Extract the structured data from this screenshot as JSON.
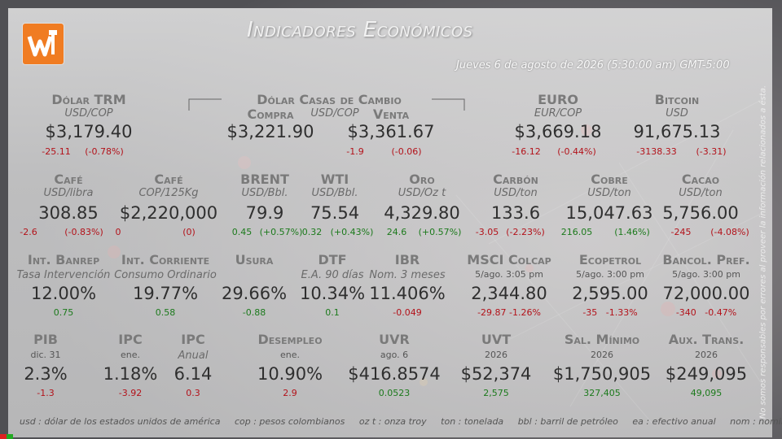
{
  "colors": {
    "positive": "#1c7a1c",
    "negative": "#b3121a",
    "logo": "#f07c22"
  },
  "header": {
    "title": "Indicadores Económicos",
    "date": "Jueves 6 de agosto de 2026 (5:30:00 am) GMT-5:00",
    "logo_icon": "w-logo-icon"
  },
  "row1": {
    "dolar_trm": {
      "label": "Dólar TRM",
      "unit": "USD/COP",
      "value": "$3,179.40",
      "change": "-25.11",
      "pct": "(-0.78%)",
      "trend": "neg"
    },
    "casas": {
      "label": "Dólar Casas de Cambio",
      "compra_label": "Compra",
      "unit": "USD/COP",
      "venta_label": "Venta",
      "compra_value": "$3,221.90",
      "venta_value": "$3,361.67",
      "venta_change": "-1.9",
      "venta_pct": "(-0.06)"
    },
    "euro": {
      "label": "EURO",
      "unit": "EUR/COP",
      "value": "$3,669.18",
      "change": "-16.12",
      "pct": "(-0.44%)",
      "trend": "neg"
    },
    "bitcoin": {
      "label": "Bitcoin",
      "unit": "USD",
      "value": "91,675.13",
      "change": "-3138.33",
      "pct": "(-3.31)",
      "trend": "neg"
    }
  },
  "row2": [
    {
      "label": "Café",
      "unit": "USD/libra",
      "value": "308.85",
      "change": "-2.6",
      "pct": "(-0.83%)",
      "trend": "neg"
    },
    {
      "label": "Café",
      "unit": "COP/125Kg",
      "value": "$2,220,000",
      "change": "0",
      "pct": "(0)",
      "trend": "neg"
    },
    {
      "label": "BRENT",
      "unit": "USD/Bbl.",
      "value": "79.9",
      "change": "0.45",
      "pct": "(+0.57%)",
      "trend": "pos"
    },
    {
      "label": "WTI",
      "unit": "USD/Bbl.",
      "value": "75.54",
      "change": "0.32",
      "pct": "(+0.43%)",
      "trend": "pos"
    },
    {
      "label": "Oro",
      "unit": "USD/Oz t",
      "value": "4,329.80",
      "change": "24.6",
      "pct": "(+0.57%)",
      "trend": "pos"
    },
    {
      "label": "Carbón",
      "unit": "USD/ton",
      "value": "133.6",
      "change": "-3.05",
      "pct": "(-2.23%)",
      "trend": "neg"
    },
    {
      "label": "Cobre",
      "unit": "USD/ton",
      "value": "15,047.63",
      "change": "216.05",
      "pct": "(1.46%)",
      "trend": "pos"
    },
    {
      "label": "Cacao",
      "unit": "USD/ton",
      "value": "5,756.00",
      "change": "-245",
      "pct": "(-4.08%)",
      "trend": "neg"
    }
  ],
  "row3": [
    {
      "label": "Int. Banrep",
      "unit": "Tasa Intervención",
      "value": "12.00%",
      "change": "0.75",
      "trend": "pos"
    },
    {
      "label": "Int. Corriente",
      "unit": "Consumo Ordinario",
      "value": "19.77%",
      "change": "0.58",
      "trend": "pos"
    },
    {
      "label": "Usura",
      "unit": "",
      "value": "29.66%",
      "change": "-0.88",
      "trend": "pos"
    },
    {
      "label": "DTF",
      "unit": "E.A. 90 días",
      "value": "10.34%",
      "change": "0.1",
      "trend": "pos"
    },
    {
      "label": "IBR",
      "unit": "Nom. 3 meses",
      "value": "11.406%",
      "change": "-0.049",
      "trend": "neg"
    },
    {
      "label": "MSCI Colcap",
      "unit": "5/ago. 3:05 pm",
      "value": "2,344.80",
      "change": "-29.87 -1.26%",
      "trend": "neg"
    },
    {
      "label": "Ecopetrol",
      "unit": "5/ago. 3:00 pm",
      "value": "2,595.00",
      "change": "-35   -1.33%",
      "trend": "neg"
    },
    {
      "label": "Bancol. Pref.",
      "unit": "5/ago. 3:00 pm",
      "value": "72,000.00",
      "change": "-340   -0.47%",
      "trend": "neg"
    }
  ],
  "row4": [
    {
      "label": "PIB",
      "unit": "dic. 31",
      "value": "2.3%",
      "change": "-1.3",
      "trend": "neg"
    },
    {
      "label": "IPC",
      "unit": "ene.",
      "value": "1.18%",
      "change": "-3.92",
      "trend": "neg"
    },
    {
      "label": "IPC",
      "unit": "Anual",
      "value": "6.14",
      "change": "0.3",
      "trend": "neg"
    },
    {
      "label": "Desempleo",
      "unit": "ene.",
      "value": "10.90%",
      "change": "2.9",
      "trend": "neg"
    },
    {
      "label": "UVR",
      "unit": "ago. 6",
      "value": "$416.8574",
      "change": "0.0523",
      "trend": "pos"
    },
    {
      "label": "UVT",
      "unit": "2026",
      "value": "$52,374",
      "change": "2,575",
      "trend": "pos"
    },
    {
      "label": "Sal. Mínimo",
      "unit": "2026",
      "value": "$1,750,905",
      "change": "327,405",
      "trend": "pos"
    },
    {
      "label": "Aux. Trans.",
      "unit": "2026",
      "value": "$249,095",
      "change": "49,095",
      "trend": "pos"
    }
  ],
  "footer": [
    "usd : dólar de los estados unidos de américa",
    "cop : pesos colombianos",
    "oz t : onza troy",
    "ton : tonelada",
    "bbl : barril de petróleo",
    "ea : efectivo anual",
    "nom : nominal"
  ],
  "side_note": "No somos responsables por errores al proveer la información relacionados a ésta."
}
